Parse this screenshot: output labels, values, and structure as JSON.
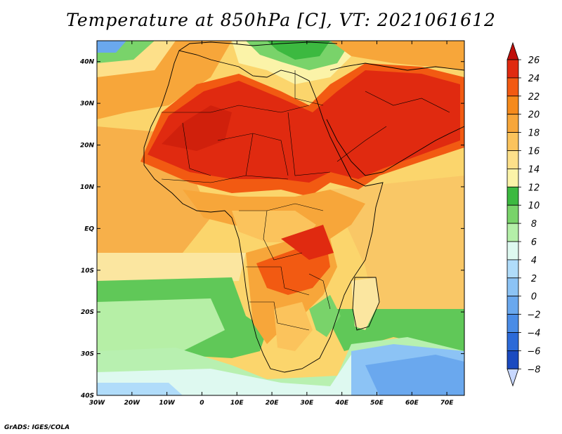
{
  "title": "Temperature at 850hPa [C], VT: 2021061612",
  "credit": "GrADS: IGES/COLA",
  "map": {
    "lon_range": [
      -30,
      75
    ],
    "lat_range": [
      -40,
      45
    ],
    "lat_ticks": [
      {
        "value": 40,
        "label": "40N"
      },
      {
        "value": 30,
        "label": "30N"
      },
      {
        "value": 20,
        "label": "20N"
      },
      {
        "value": 10,
        "label": "10N"
      },
      {
        "value": 0,
        "label": "EQ"
      },
      {
        "value": -10,
        "label": "10S"
      },
      {
        "value": -20,
        "label": "20S"
      },
      {
        "value": -30,
        "label": "30S"
      },
      {
        "value": -40,
        "label": "40S"
      }
    ],
    "lon_ticks": [
      {
        "value": -30,
        "label": "30W"
      },
      {
        "value": -20,
        "label": "20W"
      },
      {
        "value": -10,
        "label": "10W"
      },
      {
        "value": 0,
        "label": "0"
      },
      {
        "value": 10,
        "label": "10E"
      },
      {
        "value": 20,
        "label": "20E"
      },
      {
        "value": 30,
        "label": "30E"
      },
      {
        "value": 40,
        "label": "40E"
      },
      {
        "value": 50,
        "label": "50E"
      },
      {
        "value": 60,
        "label": "60E"
      },
      {
        "value": 70,
        "label": "70E"
      }
    ]
  },
  "colorbar": {
    "levels": [
      26,
      24,
      22,
      20,
      18,
      16,
      14,
      12,
      10,
      8,
      6,
      4,
      2,
      0,
      -2,
      -4,
      -6,
      -8
    ],
    "labels": [
      "26",
      "24",
      "22",
      "20",
      "18",
      "16",
      "14",
      "12",
      "10",
      "8",
      "6",
      "4",
      "2",
      "0",
      "−2",
      "−4",
      "−6",
      "−8"
    ],
    "colors": [
      "#e02a10",
      "#f25a12",
      "#f58a1c",
      "#f7a63a",
      "#fbc35c",
      "#fde08a",
      "#fbf3a8",
      "#3cb940",
      "#79d36a",
      "#b4efa8",
      "#def9f0",
      "#b0dcfa",
      "#8cc3f5",
      "#6aa8ee",
      "#4a8ce6",
      "#2c6ad8",
      "#1a4ac0",
      "#0d2c88"
    ],
    "top_arrow_color": "#c0100c",
    "bottom_arrow_color": "#c8d8ff"
  }
}
